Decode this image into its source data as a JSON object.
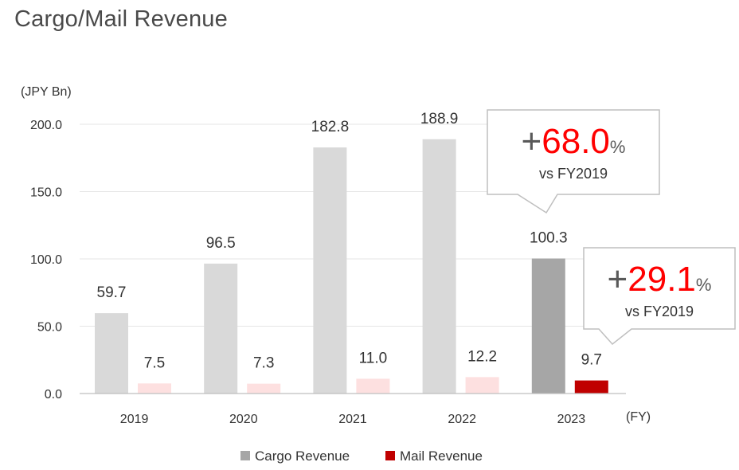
{
  "page": {
    "title": "Cargo/Mail Revenue"
  },
  "chart_data": {
    "type": "bar",
    "unit_label": "(JPY Bn)",
    "x_unit_label": "(FY)",
    "categories": [
      "2019",
      "2020",
      "2021",
      "2022",
      "2023"
    ],
    "ylim": [
      0,
      200
    ],
    "yticks": [
      "0.0",
      "50.0",
      "100.0",
      "150.0",
      "200.0"
    ],
    "grid": true,
    "legend_position": "bottom",
    "series": [
      {
        "name": "Cargo Revenue",
        "values": [
          59.7,
          96.5,
          182.8,
          188.9,
          100.3
        ],
        "labels": [
          "59.7",
          "96.5",
          "182.8",
          "188.9",
          "100.3"
        ],
        "color": "#d9d9d9",
        "highlight_color": "#a6a6a6",
        "legend_color": "#a6a6a6"
      },
      {
        "name": "Mail Revenue",
        "values": [
          7.5,
          7.3,
          11.0,
          12.2,
          9.7
        ],
        "labels": [
          "7.5",
          "7.3",
          "11.0",
          "12.2",
          "9.7"
        ],
        "color": "#fde0e0",
        "highlight_color": "#c00000",
        "legend_color": "#c00000"
      }
    ],
    "highlight_category": "2023",
    "callouts": [
      {
        "series": "Cargo Revenue",
        "sign": "+",
        "value": "68.0",
        "percent": "%",
        "sub": "vs FY2019"
      },
      {
        "series": "Mail Revenue",
        "sign": "+",
        "value": "29.1",
        "percent": "%",
        "sub": "vs FY2019"
      }
    ],
    "colors": {
      "accent": "#ff0000",
      "text": "#333333",
      "axis": "#bfbfbf",
      "gridline": "#e6e6e6"
    }
  }
}
